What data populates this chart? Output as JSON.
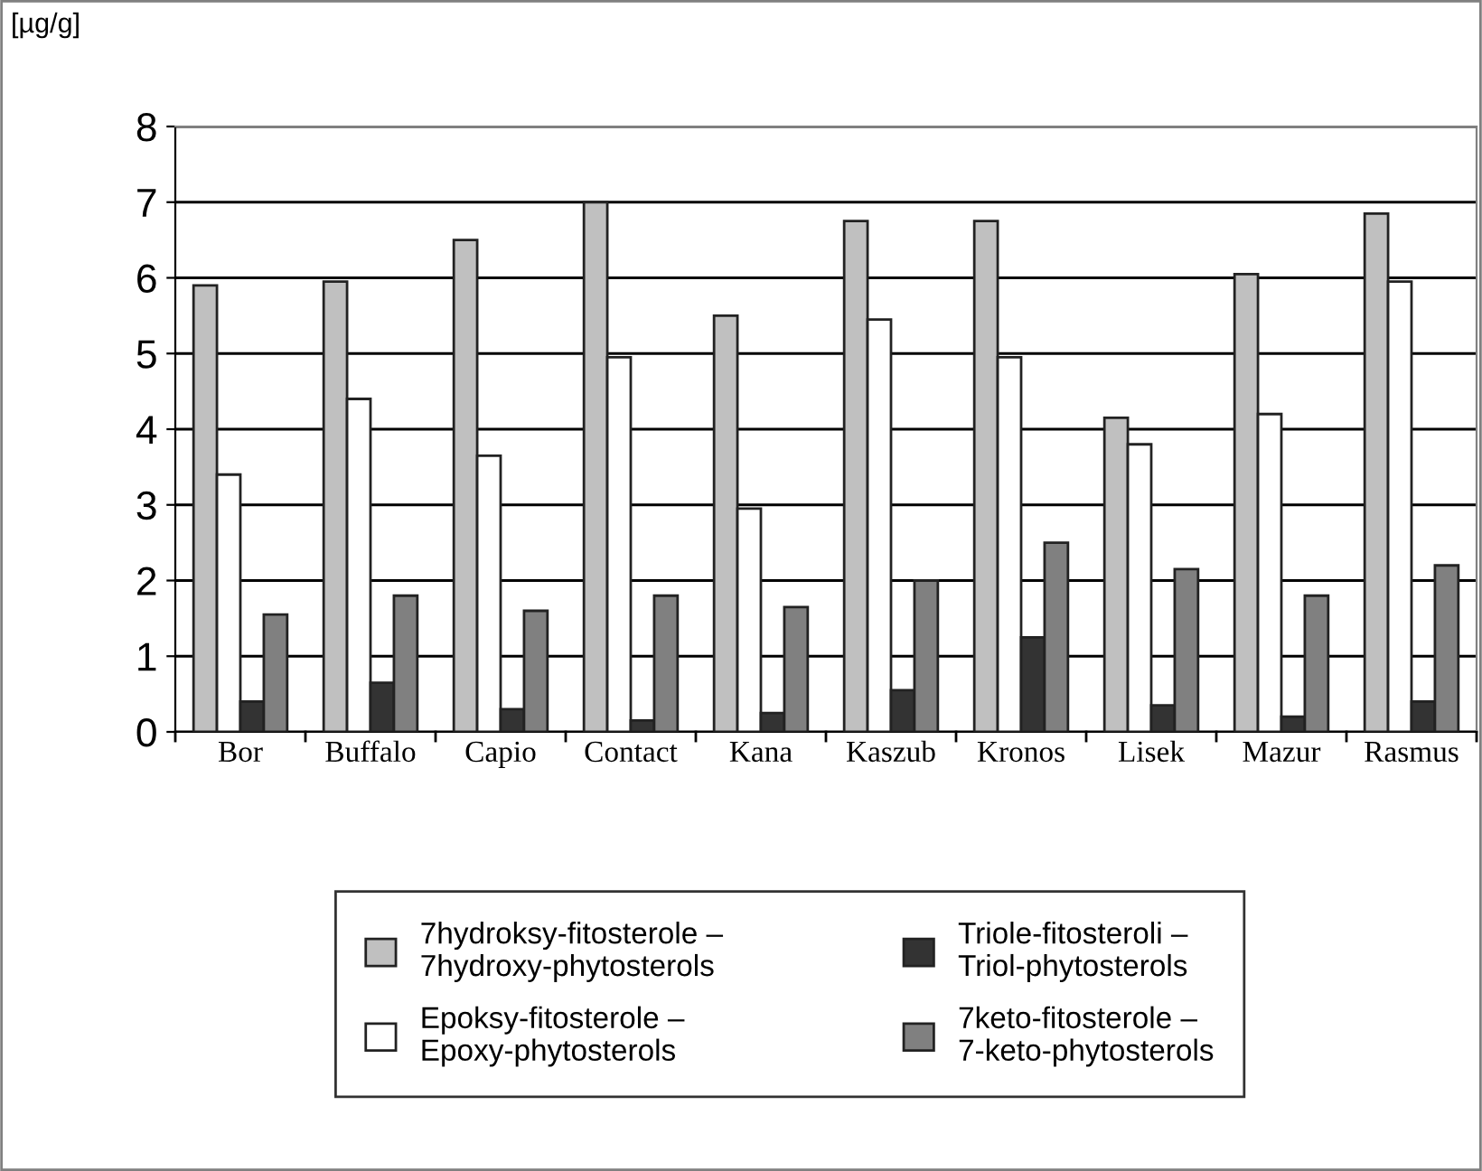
{
  "chart_data": {
    "type": "bar",
    "ylabel": "[µg/g]",
    "categories": [
      "Bor",
      "Buffalo",
      "Capio",
      "Contact",
      "Kana",
      "Kaszub",
      "Kronos",
      "Lisek",
      "Mazur",
      "Rasmus"
    ],
    "series": [
      {
        "name": "7hydroksy-fitosterole –\n7hydroxy-phytosterols",
        "color": "#c0c0c0",
        "values": [
          5.9,
          5.95,
          6.5,
          7.0,
          5.5,
          6.75,
          6.75,
          4.15,
          6.05,
          6.85
        ]
      },
      {
        "name": "Epoksy-fitosterole –\nEpoxy-phytosterols",
        "color": "#ffffff",
        "values": [
          3.4,
          4.4,
          3.65,
          4.95,
          2.95,
          5.45,
          4.95,
          3.8,
          4.2,
          5.95
        ]
      },
      {
        "name": "Triole-fitosteroli –\nTriol-phytosterols",
        "color": "#333333",
        "values": [
          0.4,
          0.65,
          0.3,
          0.15,
          0.25,
          0.55,
          1.25,
          0.35,
          0.2,
          0.4
        ]
      },
      {
        "name": "7keto-fitosterole –\n7-keto-phytosterols",
        "color": "#808080",
        "values": [
          1.55,
          1.8,
          1.6,
          1.8,
          1.65,
          2.0,
          2.5,
          2.15,
          1.8,
          2.2
        ]
      }
    ],
    "ylim": [
      0,
      8
    ],
    "yticks": [
      0,
      1,
      2,
      3,
      4,
      5,
      6,
      7,
      8
    ],
    "grid": "y",
    "legend": "bottom"
  }
}
